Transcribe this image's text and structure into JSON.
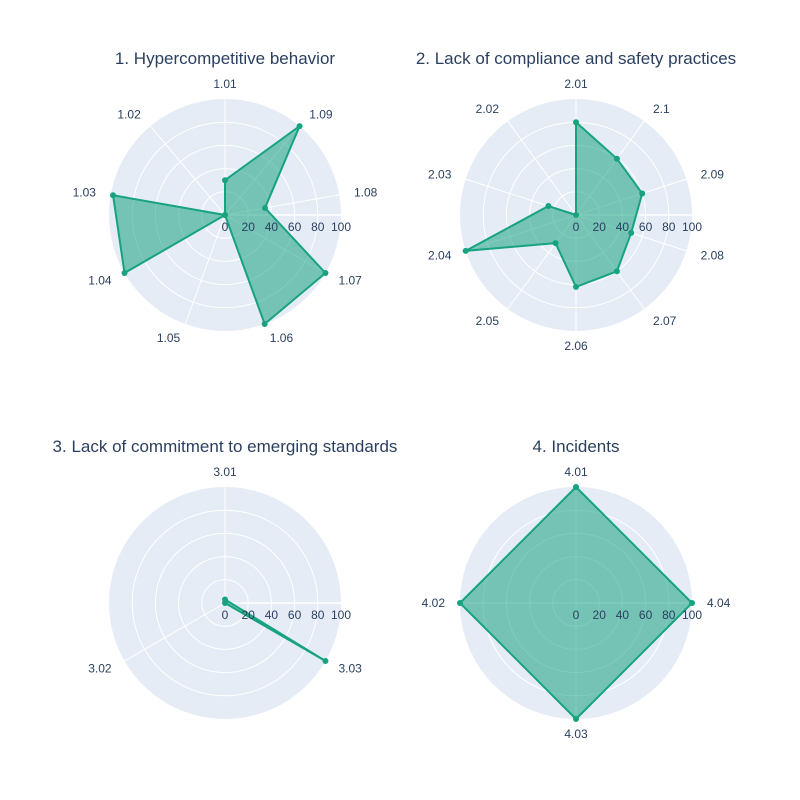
{
  "colors": {
    "polar_bg": "#e5ecf6",
    "grid": "#ffffff",
    "series_line": "#17a37f",
    "series_fill": "rgba(23, 163, 127, 0.55)",
    "text": "#2a3f5f"
  },
  "radial_ticks": [
    "0",
    "20",
    "40",
    "60",
    "80",
    "100"
  ],
  "chart_data": [
    {
      "type": "radar",
      "title": "1. Hypercompetitive behavior",
      "rrange": [
        0,
        100
      ],
      "categories": [
        "1.01",
        "1.09",
        "1.08",
        "1.07",
        "1.06",
        "1.05",
        "1.04",
        "1.03",
        "1.02"
      ],
      "values": [
        30,
        100,
        35,
        100,
        100,
        0,
        100,
        98,
        0
      ]
    },
    {
      "type": "radar",
      "title": "2. Lack of compliance and safety practices",
      "rrange": [
        0,
        100
      ],
      "categories": [
        "2.01",
        "2.1",
        "2.09",
        "2.08",
        "2.07",
        "2.06",
        "2.05",
        "2.04",
        "2.03",
        "2.02"
      ],
      "values": [
        80,
        60,
        60,
        50,
        60,
        62,
        30,
        100,
        25,
        0
      ]
    },
    {
      "type": "radar",
      "title": "3. Lack of commitment to emerging standards",
      "rrange": [
        0,
        100
      ],
      "categories": [
        "3.01",
        "3.03",
        "3.02"
      ],
      "values": [
        3,
        100,
        0
      ]
    },
    {
      "type": "radar",
      "title": "4. Incidents",
      "rrange": [
        0,
        100
      ],
      "categories": [
        "4.01",
        "4.04",
        "4.03",
        "4.02"
      ],
      "values": [
        100,
        100,
        100,
        100
      ]
    }
  ]
}
